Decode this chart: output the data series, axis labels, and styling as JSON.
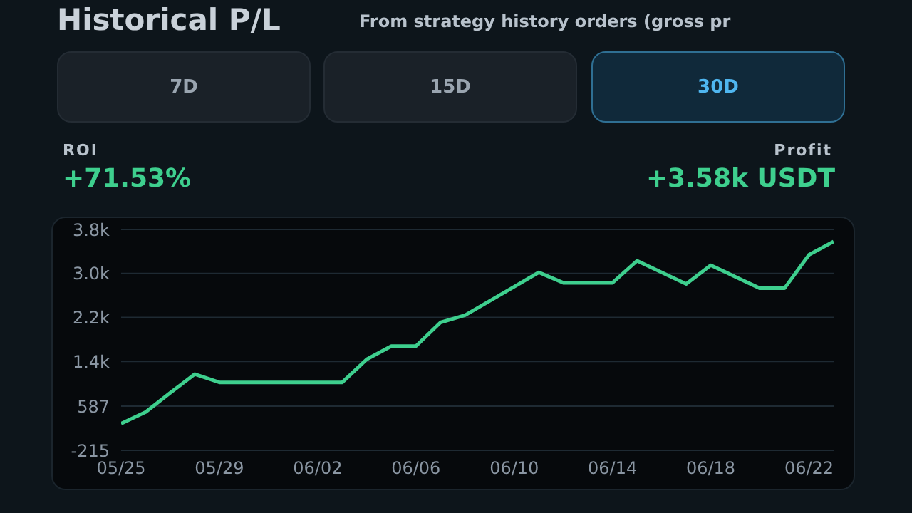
{
  "chart_data": {
    "type": "line",
    "title": "Historical P/L",
    "subtitle": "From strategy history orders (gross pr",
    "annotations": [
      "7D",
      "15D",
      "30D",
      "ROI",
      "+71.53%",
      "Profit",
      "+3.58k USDT"
    ],
    "x": [
      "--05-25",
      "--05-26",
      "--05-27",
      "--05-28",
      "--05-29",
      "--05-30",
      "--05-31",
      "--06-01",
      "--06-02",
      "--06-03",
      "--06-04",
      "--06-05",
      "--06-06",
      "--06-07",
      "--06-08",
      "--06-09",
      "--06-10",
      "--06-11",
      "--06-12",
      "--06-13",
      "--06-14",
      "--06-15",
      "--06-16",
      "--06-17",
      "--06-18",
      "--06-19",
      "--06-20",
      "--06-21",
      "--06-22",
      "--06-23"
    ],
    "series": [
      {
        "color": "#3ecf8e",
        "values": [
          270,
          480,
          830,
          1170,
          1020,
          1020,
          1020,
          1020,
          1020,
          1020,
          1440,
          1680,
          1680,
          2110,
          2240,
          2500,
          2760,
          3020,
          2830,
          2830,
          2830,
          3230,
          3020,
          2810,
          3150,
          2940,
          2730,
          2730,
          3340,
          3580
        ]
      }
    ],
    "xlim": [
      "--05-25",
      "--06-23"
    ],
    "xticks": [
      {
        "value": "--05-25",
        "label": "05/25"
      },
      {
        "value": "--05-29",
        "label": "05/29"
      },
      {
        "value": "--06-02",
        "label": "06/02"
      },
      {
        "value": "--06-06",
        "label": "06/06"
      },
      {
        "value": "--06-10",
        "label": "06/10"
      },
      {
        "value": "--06-14",
        "label": "06/14"
      },
      {
        "value": "--06-18",
        "label": "06/18"
      },
      {
        "value": "--06-22",
        "label": "06/22"
      }
    ],
    "ylim": [
      -215,
      3800
    ],
    "yticks": [
      -215,
      587,
      {
        "value": 1400,
        "label": "1.4k"
      },
      {
        "value": 2200,
        "label": "2.2k"
      },
      {
        "value": 3000,
        "label": "3.0k"
      },
      {
        "value": 3800,
        "label": "3.8k"
      }
    ],
    "grid": "y",
    "marker": "none",
    "line_style": "solid",
    "legend": false
  }
}
